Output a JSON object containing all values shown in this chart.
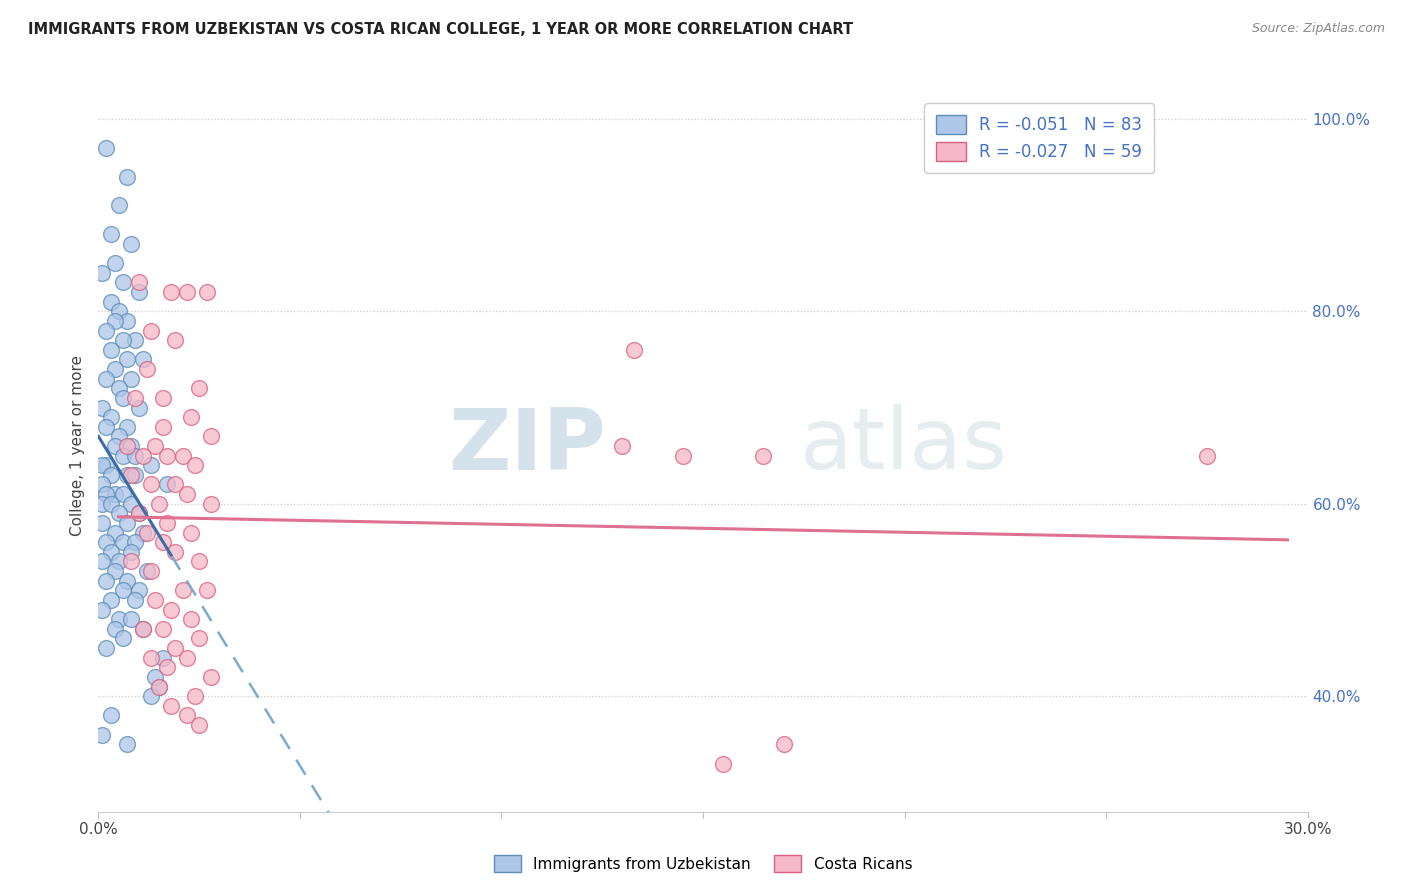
{
  "title": "IMMIGRANTS FROM UZBEKISTAN VS COSTA RICAN COLLEGE, 1 YEAR OR MORE CORRELATION CHART",
  "source": "Source: ZipAtlas.com",
  "ylabel": "College, 1 year or more",
  "xlim": [
    0.0,
    0.3
  ],
  "ylim": [
    0.28,
    1.04
  ],
  "x_ticks": [
    0.0,
    0.05,
    0.1,
    0.15,
    0.2,
    0.25,
    0.3
  ],
  "x_tick_labels": [
    "0.0%",
    "",
    "",
    "",
    "",
    "",
    "30.0%"
  ],
  "y_ticks": [
    0.4,
    0.6,
    0.8,
    1.0
  ],
  "y_tick_labels": [
    "40.0%",
    "60.0%",
    "80.0%",
    "100.0%"
  ],
  "watermark_zip": "ZIP",
  "watermark_atlas": "atlas",
  "legend_label1": "R = -0.051   N = 83",
  "legend_label2": "R = -0.027   N = 59",
  "blue_fill": "#aec6e8",
  "blue_edge": "#5b8db8",
  "pink_fill": "#f4b8c8",
  "pink_edge": "#d96080",
  "blue_line_solid": "#3a6ea8",
  "blue_line_dash": "#7aaad0",
  "pink_line": "#e07090",
  "leg_bottom_blue": "Immigrants from Uzbekistan",
  "leg_bottom_pink": "Costa Ricans",
  "blue_x": [
    0.002,
    0.007,
    0.005,
    0.003,
    0.008,
    0.004,
    0.001,
    0.006,
    0.01,
    0.003,
    0.005,
    0.007,
    0.004,
    0.002,
    0.009,
    0.006,
    0.003,
    0.011,
    0.007,
    0.004,
    0.002,
    0.008,
    0.005,
    0.006,
    0.01,
    0.001,
    0.003,
    0.007,
    0.002,
    0.005,
    0.008,
    0.004,
    0.006,
    0.009,
    0.002,
    0.001,
    0.013,
    0.003,
    0.007,
    0.009,
    0.017,
    0.001,
    0.004,
    0.006,
    0.002,
    0.001,
    0.008,
    0.003,
    0.005,
    0.01,
    0.007,
    0.001,
    0.004,
    0.011,
    0.002,
    0.006,
    0.009,
    0.003,
    0.008,
    0.005,
    0.001,
    0.012,
    0.004,
    0.007,
    0.002,
    0.006,
    0.01,
    0.003,
    0.009,
    0.001,
    0.005,
    0.008,
    0.004,
    0.011,
    0.006,
    0.002,
    0.015,
    0.013,
    0.003,
    0.001,
    0.007,
    0.014,
    0.016
  ],
  "blue_y": [
    0.97,
    0.94,
    0.91,
    0.88,
    0.87,
    0.85,
    0.84,
    0.83,
    0.82,
    0.81,
    0.8,
    0.79,
    0.79,
    0.78,
    0.77,
    0.77,
    0.76,
    0.75,
    0.75,
    0.74,
    0.73,
    0.73,
    0.72,
    0.71,
    0.7,
    0.7,
    0.69,
    0.68,
    0.68,
    0.67,
    0.66,
    0.66,
    0.65,
    0.65,
    0.64,
    0.64,
    0.64,
    0.63,
    0.63,
    0.63,
    0.62,
    0.62,
    0.61,
    0.61,
    0.61,
    0.6,
    0.6,
    0.6,
    0.59,
    0.59,
    0.58,
    0.58,
    0.57,
    0.57,
    0.56,
    0.56,
    0.56,
    0.55,
    0.55,
    0.54,
    0.54,
    0.53,
    0.53,
    0.52,
    0.52,
    0.51,
    0.51,
    0.5,
    0.5,
    0.49,
    0.48,
    0.48,
    0.47,
    0.47,
    0.46,
    0.45,
    0.41,
    0.4,
    0.38,
    0.36,
    0.35,
    0.42,
    0.44
  ],
  "pink_x": [
    0.01,
    0.022,
    0.018,
    0.027,
    0.013,
    0.019,
    0.012,
    0.025,
    0.009,
    0.016,
    0.023,
    0.016,
    0.028,
    0.007,
    0.014,
    0.021,
    0.011,
    0.017,
    0.024,
    0.008,
    0.133,
    0.13,
    0.145,
    0.165,
    0.013,
    0.019,
    0.022,
    0.015,
    0.028,
    0.01,
    0.017,
    0.012,
    0.023,
    0.016,
    0.019,
    0.025,
    0.008,
    0.013,
    0.021,
    0.027,
    0.014,
    0.018,
    0.023,
    0.011,
    0.016,
    0.025,
    0.019,
    0.013,
    0.022,
    0.017,
    0.028,
    0.015,
    0.024,
    0.018,
    0.022,
    0.025,
    0.275,
    0.17,
    0.155
  ],
  "pink_y": [
    0.83,
    0.82,
    0.82,
    0.82,
    0.78,
    0.77,
    0.74,
    0.72,
    0.71,
    0.71,
    0.69,
    0.68,
    0.67,
    0.66,
    0.66,
    0.65,
    0.65,
    0.65,
    0.64,
    0.63,
    0.76,
    0.66,
    0.65,
    0.65,
    0.62,
    0.62,
    0.61,
    0.6,
    0.6,
    0.59,
    0.58,
    0.57,
    0.57,
    0.56,
    0.55,
    0.54,
    0.54,
    0.53,
    0.51,
    0.51,
    0.5,
    0.49,
    0.48,
    0.47,
    0.47,
    0.46,
    0.45,
    0.44,
    0.44,
    0.43,
    0.42,
    0.41,
    0.4,
    0.39,
    0.38,
    0.37,
    0.65,
    0.35,
    0.33
  ]
}
